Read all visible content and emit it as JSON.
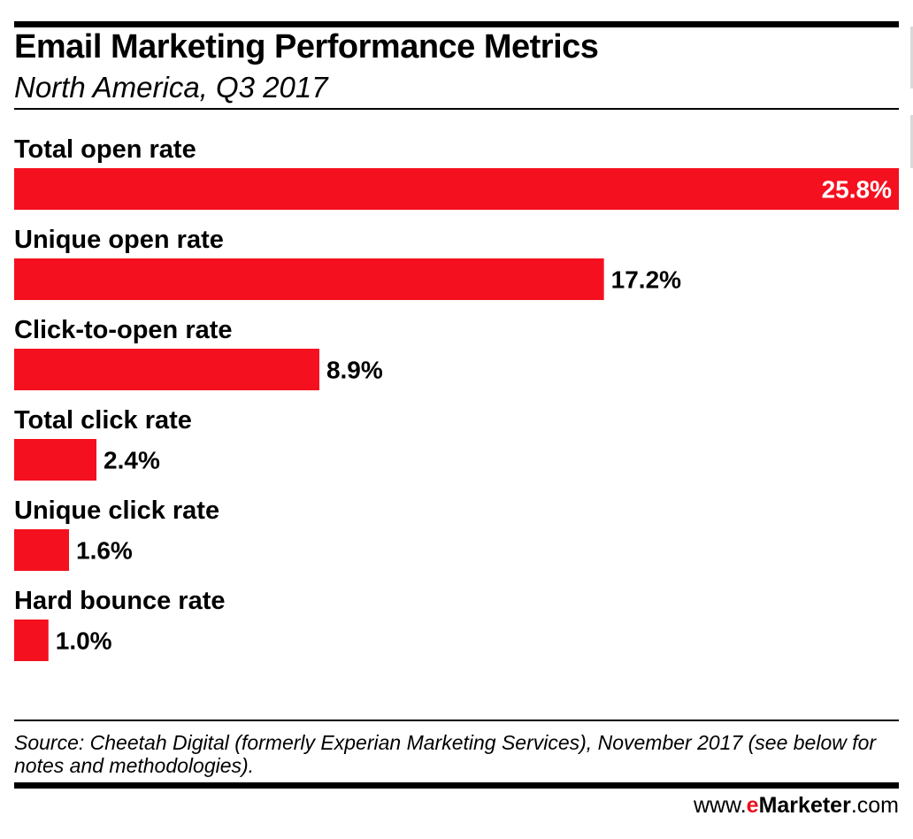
{
  "chart_data": {
    "type": "bar",
    "orientation": "horizontal",
    "title": "Email Marketing Performance Metrics",
    "subtitle": "North America, Q3 2017",
    "categories": [
      "Total open rate",
      "Unique open rate",
      "Click-to-open rate",
      "Total click rate",
      "Unique click rate",
      "Hard bounce rate"
    ],
    "values": [
      25.8,
      17.2,
      8.9,
      2.4,
      1.6,
      1.0
    ],
    "value_labels": [
      "25.8%",
      "17.2%",
      "8.9%",
      "2.4%",
      "1.6%",
      "1.0%"
    ],
    "xlim": [
      0,
      25.8
    ],
    "grid": false,
    "bar_color": "#f5101f"
  },
  "footer": {
    "source": "Source: Cheetah Digital (formerly Experian Marketing Services), November 2017 (see below for notes and methodologies).",
    "brand_prefix": "www.",
    "brand_e": "e",
    "brand_marketer": "Marketer",
    "brand_suffix": ".com"
  }
}
